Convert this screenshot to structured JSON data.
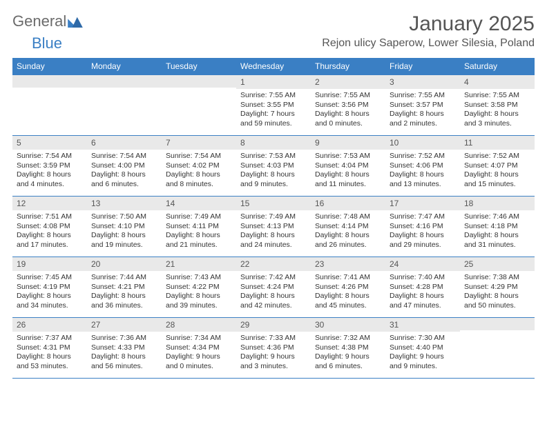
{
  "logo": {
    "text1": "General",
    "text2": "Blue",
    "tri_color": "#3a7fc4"
  },
  "title": "January 2025",
  "location": "Rejon ulicy Saperow, Lower Silesia, Poland",
  "colors": {
    "accent": "#3a7fc4",
    "header_row_bg": "#e9e9e9",
    "text": "#333333"
  },
  "font": {
    "title_size": 30,
    "location_size": 16,
    "weekday_size": 12,
    "body_size": 10.5
  },
  "weekdays": [
    "Sunday",
    "Monday",
    "Tuesday",
    "Wednesday",
    "Thursday",
    "Friday",
    "Saturday"
  ],
  "weeks": [
    [
      {
        "n": "",
        "sunrise": "",
        "sunset": "",
        "daylight": ""
      },
      {
        "n": "",
        "sunrise": "",
        "sunset": "",
        "daylight": ""
      },
      {
        "n": "",
        "sunrise": "",
        "sunset": "",
        "daylight": ""
      },
      {
        "n": "1",
        "sunrise": "Sunrise: 7:55 AM",
        "sunset": "Sunset: 3:55 PM",
        "daylight": "Daylight: 7 hours and 59 minutes."
      },
      {
        "n": "2",
        "sunrise": "Sunrise: 7:55 AM",
        "sunset": "Sunset: 3:56 PM",
        "daylight": "Daylight: 8 hours and 0 minutes."
      },
      {
        "n": "3",
        "sunrise": "Sunrise: 7:55 AM",
        "sunset": "Sunset: 3:57 PM",
        "daylight": "Daylight: 8 hours and 2 minutes."
      },
      {
        "n": "4",
        "sunrise": "Sunrise: 7:55 AM",
        "sunset": "Sunset: 3:58 PM",
        "daylight": "Daylight: 8 hours and 3 minutes."
      }
    ],
    [
      {
        "n": "5",
        "sunrise": "Sunrise: 7:54 AM",
        "sunset": "Sunset: 3:59 PM",
        "daylight": "Daylight: 8 hours and 4 minutes."
      },
      {
        "n": "6",
        "sunrise": "Sunrise: 7:54 AM",
        "sunset": "Sunset: 4:00 PM",
        "daylight": "Daylight: 8 hours and 6 minutes."
      },
      {
        "n": "7",
        "sunrise": "Sunrise: 7:54 AM",
        "sunset": "Sunset: 4:02 PM",
        "daylight": "Daylight: 8 hours and 8 minutes."
      },
      {
        "n": "8",
        "sunrise": "Sunrise: 7:53 AM",
        "sunset": "Sunset: 4:03 PM",
        "daylight": "Daylight: 8 hours and 9 minutes."
      },
      {
        "n": "9",
        "sunrise": "Sunrise: 7:53 AM",
        "sunset": "Sunset: 4:04 PM",
        "daylight": "Daylight: 8 hours and 11 minutes."
      },
      {
        "n": "10",
        "sunrise": "Sunrise: 7:52 AM",
        "sunset": "Sunset: 4:06 PM",
        "daylight": "Daylight: 8 hours and 13 minutes."
      },
      {
        "n": "11",
        "sunrise": "Sunrise: 7:52 AM",
        "sunset": "Sunset: 4:07 PM",
        "daylight": "Daylight: 8 hours and 15 minutes."
      }
    ],
    [
      {
        "n": "12",
        "sunrise": "Sunrise: 7:51 AM",
        "sunset": "Sunset: 4:08 PM",
        "daylight": "Daylight: 8 hours and 17 minutes."
      },
      {
        "n": "13",
        "sunrise": "Sunrise: 7:50 AM",
        "sunset": "Sunset: 4:10 PM",
        "daylight": "Daylight: 8 hours and 19 minutes."
      },
      {
        "n": "14",
        "sunrise": "Sunrise: 7:49 AM",
        "sunset": "Sunset: 4:11 PM",
        "daylight": "Daylight: 8 hours and 21 minutes."
      },
      {
        "n": "15",
        "sunrise": "Sunrise: 7:49 AM",
        "sunset": "Sunset: 4:13 PM",
        "daylight": "Daylight: 8 hours and 24 minutes."
      },
      {
        "n": "16",
        "sunrise": "Sunrise: 7:48 AM",
        "sunset": "Sunset: 4:14 PM",
        "daylight": "Daylight: 8 hours and 26 minutes."
      },
      {
        "n": "17",
        "sunrise": "Sunrise: 7:47 AM",
        "sunset": "Sunset: 4:16 PM",
        "daylight": "Daylight: 8 hours and 29 minutes."
      },
      {
        "n": "18",
        "sunrise": "Sunrise: 7:46 AM",
        "sunset": "Sunset: 4:18 PM",
        "daylight": "Daylight: 8 hours and 31 minutes."
      }
    ],
    [
      {
        "n": "19",
        "sunrise": "Sunrise: 7:45 AM",
        "sunset": "Sunset: 4:19 PM",
        "daylight": "Daylight: 8 hours and 34 minutes."
      },
      {
        "n": "20",
        "sunrise": "Sunrise: 7:44 AM",
        "sunset": "Sunset: 4:21 PM",
        "daylight": "Daylight: 8 hours and 36 minutes."
      },
      {
        "n": "21",
        "sunrise": "Sunrise: 7:43 AM",
        "sunset": "Sunset: 4:22 PM",
        "daylight": "Daylight: 8 hours and 39 minutes."
      },
      {
        "n": "22",
        "sunrise": "Sunrise: 7:42 AM",
        "sunset": "Sunset: 4:24 PM",
        "daylight": "Daylight: 8 hours and 42 minutes."
      },
      {
        "n": "23",
        "sunrise": "Sunrise: 7:41 AM",
        "sunset": "Sunset: 4:26 PM",
        "daylight": "Daylight: 8 hours and 45 minutes."
      },
      {
        "n": "24",
        "sunrise": "Sunrise: 7:40 AM",
        "sunset": "Sunset: 4:28 PM",
        "daylight": "Daylight: 8 hours and 47 minutes."
      },
      {
        "n": "25",
        "sunrise": "Sunrise: 7:38 AM",
        "sunset": "Sunset: 4:29 PM",
        "daylight": "Daylight: 8 hours and 50 minutes."
      }
    ],
    [
      {
        "n": "26",
        "sunrise": "Sunrise: 7:37 AM",
        "sunset": "Sunset: 4:31 PM",
        "daylight": "Daylight: 8 hours and 53 minutes."
      },
      {
        "n": "27",
        "sunrise": "Sunrise: 7:36 AM",
        "sunset": "Sunset: 4:33 PM",
        "daylight": "Daylight: 8 hours and 56 minutes."
      },
      {
        "n": "28",
        "sunrise": "Sunrise: 7:34 AM",
        "sunset": "Sunset: 4:34 PM",
        "daylight": "Daylight: 9 hours and 0 minutes."
      },
      {
        "n": "29",
        "sunrise": "Sunrise: 7:33 AM",
        "sunset": "Sunset: 4:36 PM",
        "daylight": "Daylight: 9 hours and 3 minutes."
      },
      {
        "n": "30",
        "sunrise": "Sunrise: 7:32 AM",
        "sunset": "Sunset: 4:38 PM",
        "daylight": "Daylight: 9 hours and 6 minutes."
      },
      {
        "n": "31",
        "sunrise": "Sunrise: 7:30 AM",
        "sunset": "Sunset: 4:40 PM",
        "daylight": "Daylight: 9 hours and 9 minutes."
      },
      {
        "n": "",
        "sunrise": "",
        "sunset": "",
        "daylight": ""
      }
    ]
  ]
}
